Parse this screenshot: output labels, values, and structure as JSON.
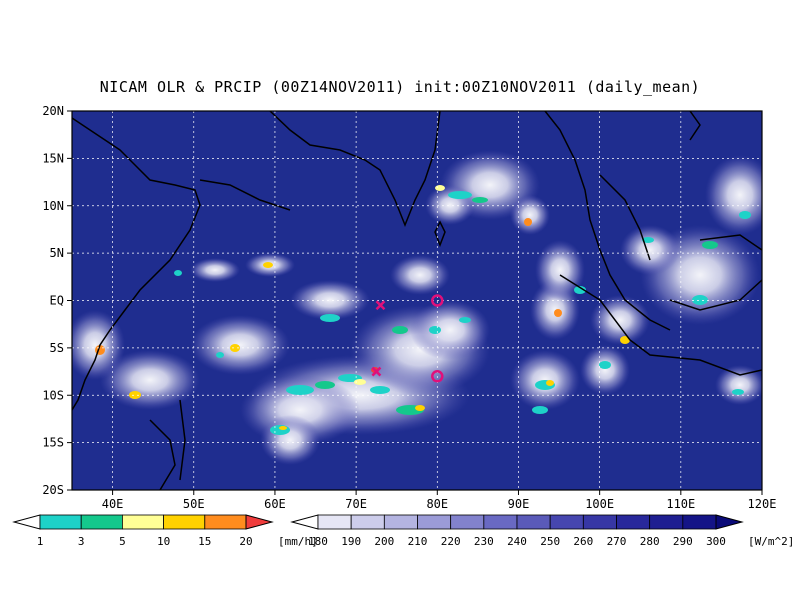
{
  "title": "NICAM OLR & PRCIP (00Z14NOV2011) init:00Z10NOV2011 (daily_mean)",
  "map": {
    "lon_range": [
      35,
      120
    ],
    "lat_range": [
      -20,
      20
    ],
    "lat_ticks": [
      "20N",
      "15N",
      "10N",
      "5N",
      "EQ",
      "5S",
      "10S",
      "15S",
      "20S"
    ],
    "lon_ticks": [
      "40E",
      "50E",
      "60E",
      "70E",
      "80E",
      "90E",
      "100E",
      "110E",
      "120E"
    ],
    "gridlines": "dotted",
    "background_color": "#1f2d8f",
    "markers": [
      {
        "type": "x",
        "lon": 73,
        "lat": -0.5,
        "color": "#e0107a"
      },
      {
        "type": "circle",
        "lon": 80,
        "lat": 0,
        "color": "#e0107a"
      },
      {
        "type": "x",
        "lon": 72.5,
        "lat": -7.5,
        "color": "#e0107a"
      },
      {
        "type": "circle",
        "lon": 80,
        "lat": -8,
        "color": "#e0107a"
      }
    ]
  },
  "precip_colorbar": {
    "labels": [
      "1",
      "3",
      "5",
      "10",
      "15",
      "20"
    ],
    "unit": "[mm/h]",
    "colors": [
      "#ffffff",
      "#1ed2c8",
      "#14c88c",
      "#ffff96",
      "#ffd200",
      "#ff8c1e",
      "#f03c3c"
    ]
  },
  "olr_colorbar": {
    "labels": [
      "180",
      "190",
      "200",
      "210",
      "220",
      "230",
      "240",
      "250",
      "260",
      "270",
      "280",
      "290",
      "300"
    ],
    "unit": "[W/m^2]",
    "colors": [
      "#ffffff",
      "#e6e6f5",
      "#cdcdeb",
      "#b4b4e1",
      "#9b9bd7",
      "#8282cd",
      "#6969c3",
      "#5a5ab9",
      "#4646af",
      "#3737a5",
      "#28289b",
      "#1e1e91",
      "#141487",
      "#0a0a78"
    ]
  }
}
